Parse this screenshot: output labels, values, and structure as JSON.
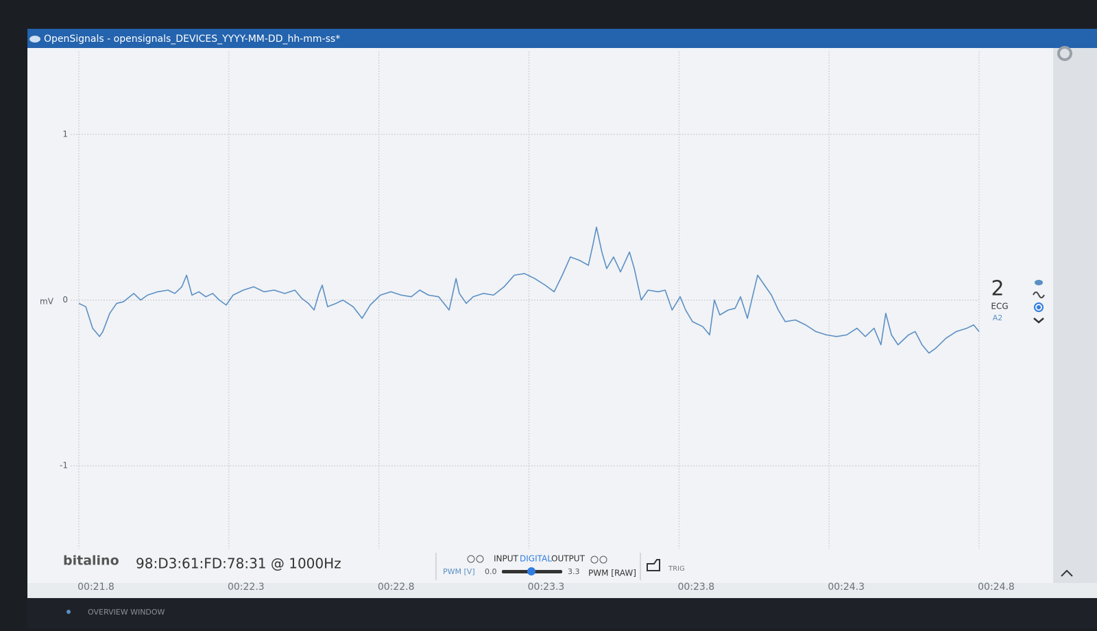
{
  "window": {
    "title": "OpenSignals - opensignals_DEVICES_YYYY-MM-DD_hh-mm-ss*"
  },
  "chart_data": {
    "type": "line",
    "y_label": "mV",
    "color": "#5b8fc4",
    "xlim": [
      21.8,
      24.8
    ],
    "ylim": [
      -1.5,
      1.5
    ],
    "yticks": [
      -1,
      0,
      1
    ],
    "xticks": [
      {
        "value": 21.8,
        "label": "00:21.8"
      },
      {
        "value": 22.3,
        "label": "00:22.3"
      },
      {
        "value": 22.8,
        "label": "00:22.8"
      },
      {
        "value": 23.3,
        "label": "00:23.3"
      },
      {
        "value": 23.8,
        "label": "00:23.8"
      },
      {
        "value": 24.3,
        "label": "00:24.3"
      },
      {
        "value": 24.8,
        "label": "00:24.8"
      }
    ],
    "grid": true,
    "x": [
      21.8,
      21.823,
      21.846,
      21.869,
      21.88,
      21.903,
      21.926,
      21.949,
      21.983,
      22.006,
      22.029,
      22.063,
      22.097,
      22.12,
      22.143,
      22.159,
      22.177,
      22.2,
      22.223,
      22.246,
      22.268,
      22.291,
      22.314,
      22.348,
      22.383,
      22.417,
      22.451,
      22.486,
      22.52,
      22.543,
      22.565,
      22.584,
      22.6,
      22.611,
      22.629,
      22.657,
      22.68,
      22.714,
      22.744,
      22.771,
      22.805,
      22.84,
      22.874,
      22.908,
      22.936,
      22.965,
      22.999,
      23.034,
      23.057,
      23.068,
      23.091,
      23.114,
      23.148,
      23.182,
      23.217,
      23.251,
      23.285,
      23.319,
      23.354,
      23.384,
      23.411,
      23.438,
      23.468,
      23.498,
      23.514,
      23.525,
      23.543,
      23.559,
      23.582,
      23.605,
      23.635,
      23.651,
      23.674,
      23.697,
      23.731,
      23.754,
      23.777,
      23.804,
      23.822,
      23.845,
      23.879,
      23.902,
      23.918,
      23.936,
      23.964,
      23.987,
      24.005,
      24.028,
      24.062,
      24.085,
      24.108,
      24.131,
      24.154,
      24.188,
      24.222,
      24.256,
      24.291,
      24.325,
      24.359,
      24.393,
      24.421,
      24.45,
      24.473,
      24.489,
      24.508,
      24.53,
      24.565,
      24.587,
      24.61,
      24.633,
      24.656,
      24.69,
      24.724,
      24.759,
      24.782,
      24.8
    ],
    "values": [
      -0.02,
      -0.04,
      -0.17,
      -0.22,
      -0.19,
      -0.08,
      -0.02,
      -0.01,
      0.04,
      0.0,
      0.03,
      0.05,
      0.06,
      0.04,
      0.08,
      0.15,
      0.03,
      0.05,
      0.02,
      0.04,
      0.0,
      -0.03,
      0.03,
      0.06,
      0.08,
      0.05,
      0.06,
      0.04,
      0.06,
      0.01,
      -0.02,
      -0.06,
      0.04,
      0.09,
      -0.04,
      -0.02,
      0.0,
      -0.04,
      -0.11,
      -0.03,
      0.03,
      0.05,
      0.03,
      0.02,
      0.06,
      0.03,
      0.02,
      -0.06,
      0.13,
      0.04,
      -0.02,
      0.02,
      0.04,
      0.03,
      0.08,
      0.15,
      0.16,
      0.13,
      0.09,
      0.05,
      0.15,
      0.26,
      0.24,
      0.21,
      0.34,
      0.44,
      0.29,
      0.19,
      0.26,
      0.17,
      0.29,
      0.19,
      0.0,
      0.06,
      0.05,
      0.06,
      -0.06,
      0.02,
      -0.06,
      -0.13,
      -0.16,
      -0.21,
      0.0,
      -0.09,
      -0.06,
      -0.05,
      0.02,
      -0.11,
      0.15,
      0.09,
      0.03,
      -0.06,
      -0.13,
      -0.12,
      -0.15,
      -0.19,
      -0.21,
      -0.22,
      -0.21,
      -0.17,
      -0.22,
      -0.17,
      -0.27,
      -0.08,
      -0.21,
      -0.27,
      -0.21,
      -0.19,
      -0.27,
      -0.32,
      -0.29,
      -0.23,
      -0.19,
      -0.17,
      -0.15,
      -0.19
    ]
  },
  "channel": {
    "number": "2",
    "sensor": "ECG",
    "port": "A2"
  },
  "toolbar": {
    "brand": "bitalino",
    "device": "98:D3:61:FD:78:31 @ 1000Hz",
    "input": "INPUT",
    "digital": "DIGITAL",
    "output": "OUTPUT",
    "pwm_v": "PWM [V]",
    "pwm_min": "0.0",
    "pwm_max": "3.3",
    "pwm_raw": "PWM [RAW]",
    "trig": "TRIG"
  },
  "overview": "OVERVIEW WINDOW"
}
